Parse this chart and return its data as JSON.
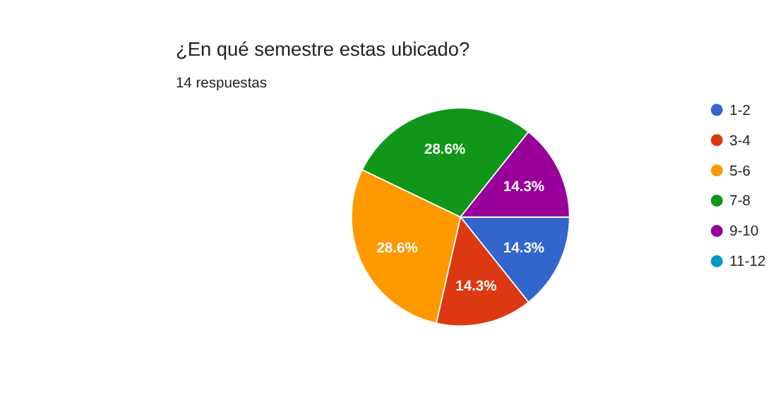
{
  "chart_data": {
    "type": "pie",
    "title": "¿En qué semestre estas ubicado?",
    "subtitle": "14 respuestas",
    "categories": [
      "1-2",
      "3-4",
      "5-6",
      "7-8",
      "9-10",
      "11-12"
    ],
    "values": [
      14.3,
      14.3,
      28.6,
      28.6,
      14.3,
      0
    ],
    "colors": [
      "#3366cc",
      "#dc3912",
      "#ff9900",
      "#109618",
      "#990099",
      "#0099c6"
    ],
    "value_labels": [
      "14.3%",
      "14.3%",
      "28.6%",
      "28.6%",
      "14.3%",
      null
    ],
    "legend": "right"
  }
}
